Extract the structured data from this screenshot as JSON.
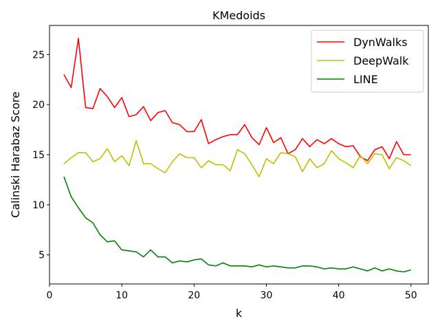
{
  "chart_data": {
    "type": "line",
    "title": "KMedoids",
    "xlabel": "k",
    "ylabel": "Calinski Harabaz Score",
    "xlim": [
      0,
      52.4
    ],
    "ylim": [
      2.1,
      27.9
    ],
    "xticks": [
      0,
      10,
      20,
      30,
      40,
      50
    ],
    "xtick_labels": [
      "0",
      "10",
      "20",
      "30",
      "40",
      "50"
    ],
    "yticks": [
      5,
      10,
      15,
      20,
      25
    ],
    "ytick_labels": [
      "5",
      "10",
      "15",
      "20",
      "25"
    ],
    "grid": false,
    "legend_position": "top-right",
    "x": [
      2,
      3,
      4,
      5,
      6,
      7,
      8,
      9,
      10,
      11,
      12,
      13,
      14,
      15,
      16,
      17,
      18,
      19,
      20,
      21,
      22,
      23,
      24,
      25,
      26,
      27,
      28,
      29,
      30,
      31,
      32,
      33,
      34,
      35,
      36,
      37,
      38,
      39,
      40,
      41,
      42,
      43,
      44,
      45,
      46,
      47,
      48,
      49,
      50
    ],
    "series": [
      {
        "name": "DynWalks",
        "color": "#ff0000",
        "values": [
          23.0,
          21.7,
          26.6,
          19.7,
          19.6,
          21.6,
          20.8,
          19.7,
          20.7,
          18.8,
          19.0,
          19.8,
          18.4,
          19.2,
          19.4,
          18.2,
          18.0,
          17.3,
          17.3,
          18.5,
          16.1,
          16.5,
          16.8,
          17.0,
          17.0,
          18.0,
          16.7,
          16.0,
          17.7,
          16.2,
          16.7,
          15.1,
          15.5,
          16.6,
          15.8,
          16.5,
          16.1,
          16.6,
          16.1,
          15.8,
          15.9,
          14.8,
          14.4,
          15.5,
          15.8,
          14.6,
          16.3,
          15.0,
          15.0
        ]
      },
      {
        "name": "DeepWalk",
        "color": "#bfbf00",
        "values": [
          14.1,
          14.7,
          15.2,
          15.2,
          14.3,
          14.6,
          15.6,
          14.3,
          14.9,
          13.9,
          16.4,
          14.1,
          14.1,
          13.6,
          13.2,
          14.3,
          15.1,
          14.7,
          14.7,
          13.7,
          14.4,
          14.0,
          14.0,
          13.4,
          15.5,
          15.1,
          14.0,
          12.8,
          14.6,
          14.1,
          15.2,
          15.1,
          14.8,
          13.3,
          14.6,
          13.7,
          14.1,
          15.4,
          14.6,
          14.2,
          13.7,
          14.9,
          14.1,
          15.1,
          15.0,
          13.6,
          14.7,
          14.4,
          13.9
        ]
      },
      {
        "name": "LINE",
        "color": "#008000",
        "values": [
          12.8,
          10.8,
          9.7,
          8.7,
          8.2,
          7.0,
          6.3,
          6.4,
          5.5,
          5.4,
          5.3,
          4.8,
          5.5,
          4.8,
          4.8,
          4.2,
          4.4,
          4.3,
          4.5,
          4.6,
          4.0,
          3.9,
          4.2,
          3.9,
          3.9,
          3.9,
          3.8,
          4.0,
          3.8,
          3.9,
          3.8,
          3.7,
          3.7,
          3.9,
          3.9,
          3.8,
          3.6,
          3.7,
          3.6,
          3.6,
          3.8,
          3.6,
          3.4,
          3.7,
          3.4,
          3.6,
          3.4,
          3.3,
          3.5
        ]
      }
    ]
  }
}
